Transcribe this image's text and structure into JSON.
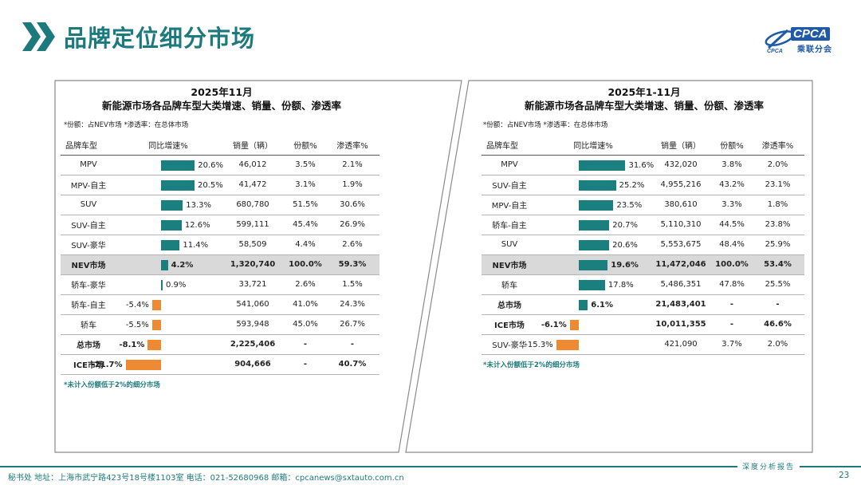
{
  "header": {
    "title": "品牌定位细分市场"
  },
  "logo": {
    "text_en": "CPCA",
    "text_cn": "乘联分会"
  },
  "colors": {
    "accent": "#1c7a7c",
    "bar_positive": "#1a7f7e",
    "bar_negative": "#ef8a34",
    "highlight_row": "#d9d9d9"
  },
  "columns": [
    "品牌车型",
    "同比增速%",
    "销量（辆）",
    "份额%",
    "渗透率%"
  ],
  "chart_data": [
    {
      "type": "table",
      "title_line1": "2025年11月",
      "title_line2": "新能源市场各品牌车型大类增速、销量、份额、渗透率",
      "note": "*份额：占NEV市场   *渗透率：在总体市场",
      "footnote": "*未计入份额低于2%的细分市场",
      "columns": [
        "品牌车型",
        "同比增速%",
        "销量（辆）",
        "份额%",
        "渗透率%"
      ],
      "rows": [
        {
          "category": "MPV",
          "growth": 20.6,
          "growth_label": "20.6%",
          "sales": "46,012",
          "share": "3.5%",
          "penetration": "2.1%",
          "style": ""
        },
        {
          "category": "MPV-自主",
          "growth": 20.5,
          "growth_label": "20.5%",
          "sales": "41,472",
          "share": "3.1%",
          "penetration": "1.9%",
          "style": ""
        },
        {
          "category": "SUV",
          "growth": 13.3,
          "growth_label": "13.3%",
          "sales": "680,780",
          "share": "51.5%",
          "penetration": "30.6%",
          "style": ""
        },
        {
          "category": "SUV-自主",
          "growth": 12.6,
          "growth_label": "12.6%",
          "sales": "599,111",
          "share": "45.4%",
          "penetration": "26.9%",
          "style": ""
        },
        {
          "category": "SUV-豪华",
          "growth": 11.4,
          "growth_label": "11.4%",
          "sales": "58,509",
          "share": "4.4%",
          "penetration": "2.6%",
          "style": ""
        },
        {
          "category": "NEV市场",
          "growth": 4.2,
          "growth_label": "4.2%",
          "sales": "1,320,740",
          "share": "100.0%",
          "penetration": "59.3%",
          "style": "hl"
        },
        {
          "category": "轿车-豪华",
          "growth": 0.9,
          "growth_label": "0.9%",
          "sales": "33,721",
          "share": "2.6%",
          "penetration": "1.5%",
          "style": ""
        },
        {
          "category": "轿车-自主",
          "growth": -5.4,
          "growth_label": "-5.4%",
          "sales": "541,060",
          "share": "41.0%",
          "penetration": "24.3%",
          "style": ""
        },
        {
          "category": "轿车",
          "growth": -5.5,
          "growth_label": "-5.5%",
          "sales": "593,948",
          "share": "45.0%",
          "penetration": "26.7%",
          "style": ""
        },
        {
          "category": "总市场",
          "growth": -8.1,
          "growth_label": "-8.1%",
          "sales": "2,225,406",
          "share": "-",
          "penetration": "-",
          "style": "bold"
        },
        {
          "category": "ICE市场",
          "growth": -21.7,
          "growth_label": "-21.7%",
          "sales": "904,666",
          "share": "-",
          "penetration": "40.7%",
          "style": "bold"
        }
      ]
    },
    {
      "type": "table",
      "title_line1": "2025年1-11月",
      "title_line2": "新能源市场各品牌车型大类增速、销量、份额、渗透率",
      "note": "*份额：占NEV市场   *渗透率：在总体市场",
      "footnote": "*未计入份额低于2%的细分市场",
      "columns": [
        "品牌车型",
        "同比增速%",
        "销量（辆）",
        "份额%",
        "渗透率%"
      ],
      "rows": [
        {
          "category": "MPV",
          "growth": 31.6,
          "growth_label": "31.6%",
          "sales": "432,020",
          "share": "3.8%",
          "penetration": "2.0%",
          "style": ""
        },
        {
          "category": "SUV-自主",
          "growth": 25.2,
          "growth_label": "25.2%",
          "sales": "4,955,216",
          "share": "43.2%",
          "penetration": "23.1%",
          "style": ""
        },
        {
          "category": "MPV-自主",
          "growth": 23.5,
          "growth_label": "23.5%",
          "sales": "380,610",
          "share": "3.3%",
          "penetration": "1.8%",
          "style": ""
        },
        {
          "category": "轿车-自主",
          "growth": 20.7,
          "growth_label": "20.7%",
          "sales": "5,110,310",
          "share": "44.5%",
          "penetration": "23.8%",
          "style": ""
        },
        {
          "category": "SUV",
          "growth": 20.6,
          "growth_label": "20.6%",
          "sales": "5,553,675",
          "share": "48.4%",
          "penetration": "25.9%",
          "style": ""
        },
        {
          "category": "NEV市场",
          "growth": 19.6,
          "growth_label": "19.6%",
          "sales": "11,472,046",
          "share": "100.0%",
          "penetration": "53.4%",
          "style": "hl"
        },
        {
          "category": "轿车",
          "growth": 17.8,
          "growth_label": "17.8%",
          "sales": "5,486,351",
          "share": "47.8%",
          "penetration": "25.5%",
          "style": ""
        },
        {
          "category": "总市场",
          "growth": 6.1,
          "growth_label": "6.1%",
          "sales": "21,483,401",
          "share": "-",
          "penetration": "-",
          "style": "bold"
        },
        {
          "category": "ICE市场",
          "growth": -6.1,
          "growth_label": "-6.1%",
          "sales": "10,011,355",
          "share": "-",
          "penetration": "46.6%",
          "style": "bold"
        },
        {
          "category": "SUV-豪华",
          "growth": -15.3,
          "growth_label": "-15.3%",
          "sales": "421,090",
          "share": "3.7%",
          "penetration": "2.0%",
          "style": ""
        }
      ]
    }
  ],
  "footer": {
    "address": "秘书处   地址：上海市武宁路423号18号楼1103室  电话：021-52680968   邮箱：cpcanews@sxtauto.com.cn",
    "tag": "深度分析报告",
    "page": "23"
  }
}
